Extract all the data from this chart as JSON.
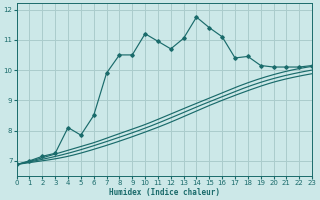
{
  "xlabel": "Humidex (Indice chaleur)",
  "xlim": [
    0,
    23
  ],
  "ylim": [
    6.5,
    12.2
  ],
  "yticks": [
    7,
    8,
    9,
    10,
    11,
    12
  ],
  "xticks": [
    0,
    1,
    2,
    3,
    4,
    5,
    6,
    7,
    8,
    9,
    10,
    11,
    12,
    13,
    14,
    15,
    16,
    17,
    18,
    19,
    20,
    21,
    22,
    23
  ],
  "bg_color": "#cce8e8",
  "line_color": "#1a6b6b",
  "grid_color": "#aacccc",
  "main_x": [
    0,
    1,
    2,
    3,
    4,
    5,
    6,
    7,
    8,
    9,
    10,
    11,
    12,
    13,
    14,
    15,
    16,
    17,
    18,
    19,
    20,
    21,
    22,
    23
  ],
  "main_y": [
    6.88,
    7.0,
    7.15,
    7.25,
    8.1,
    7.85,
    8.5,
    9.9,
    10.5,
    10.5,
    11.2,
    10.95,
    10.7,
    11.05,
    11.75,
    11.4,
    11.1,
    10.4,
    10.45,
    10.15,
    10.1,
    10.1,
    10.1,
    10.15
  ],
  "curve1_x": [
    0,
    2,
    4,
    6,
    8,
    10,
    12,
    14,
    16,
    18,
    20,
    22,
    23
  ],
  "curve1_y": [
    6.88,
    7.1,
    7.35,
    7.6,
    7.9,
    8.2,
    8.55,
    8.9,
    9.25,
    9.58,
    9.85,
    10.05,
    10.12
  ],
  "curve2_x": [
    0,
    2,
    4,
    6,
    8,
    10,
    12,
    14,
    16,
    18,
    20,
    22,
    23
  ],
  "curve2_y": [
    6.88,
    7.05,
    7.25,
    7.5,
    7.78,
    8.08,
    8.42,
    8.78,
    9.12,
    9.45,
    9.72,
    9.92,
    10.0
  ],
  "curve3_x": [
    0,
    2,
    4,
    6,
    8,
    10,
    12,
    14,
    16,
    18,
    20,
    22,
    23
  ],
  "curve3_y": [
    6.88,
    7.0,
    7.15,
    7.38,
    7.65,
    7.95,
    8.28,
    8.65,
    9.0,
    9.32,
    9.6,
    9.8,
    9.88
  ]
}
